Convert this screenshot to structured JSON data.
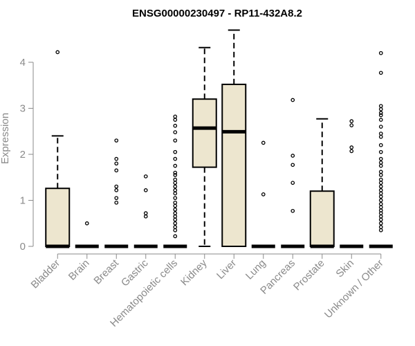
{
  "chart_data": {
    "type": "box",
    "title": "ENSG00000230497 - RP11-432A8.2",
    "xlabel": "",
    "ylabel": "Expression",
    "ylim": [
      0,
      4.7
    ],
    "yticks": [
      0,
      1,
      2,
      3,
      4
    ],
    "ytick_labels": [
      "0",
      "1",
      "2",
      "3",
      "4"
    ],
    "grid": false,
    "box_fill": "#ede6cf",
    "categories": [
      "Bladder",
      "Brain",
      "Breast",
      "Gastric",
      "Hematopoietic cells",
      "Kidney",
      "Liver",
      "Lung",
      "Pancreas",
      "Prostate",
      "Skin",
      "Unknown / Other"
    ],
    "boxes": [
      {
        "q1": 0,
        "median": 0,
        "q3": 1.26,
        "whisker_low": 0,
        "whisker_high": 2.4,
        "outliers": [
          4.22
        ]
      },
      {
        "q1": 0,
        "median": 0,
        "q3": 0,
        "whisker_low": 0,
        "whisker_high": 0,
        "outliers": [
          0.5
        ]
      },
      {
        "q1": 0,
        "median": 0,
        "q3": 0,
        "whisker_low": 0,
        "whisker_high": 0,
        "outliers": [
          2.3,
          1.9,
          1.8,
          1.65,
          1.3,
          1.22,
          1.05,
          0.95
        ]
      },
      {
        "q1": 0,
        "median": 0,
        "q3": 0,
        "whisker_low": 0,
        "whisker_high": 0,
        "outliers": [
          1.52,
          1.22,
          0.72,
          0.65
        ]
      },
      {
        "q1": 0,
        "median": 0,
        "q3": 0,
        "whisker_low": 0,
        "whisker_high": 0,
        "outliers": [
          2.82,
          2.75,
          2.62,
          2.48,
          2.3,
          2.05,
          1.9,
          1.75,
          1.6,
          1.55,
          1.45,
          1.38,
          1.3,
          1.22,
          1.15,
          1.05,
          0.95,
          0.88,
          0.8,
          0.72,
          0.65,
          0.58,
          0.5,
          0.42,
          0.35,
          0.22
        ]
      },
      {
        "q1": 1.72,
        "median": 2.57,
        "q3": 3.2,
        "whisker_low": 0,
        "whisker_high": 4.32,
        "outliers": []
      },
      {
        "q1": 0,
        "median": 2.49,
        "q3": 3.52,
        "whisker_low": 0,
        "whisker_high": 4.7,
        "outliers": []
      },
      {
        "q1": 0,
        "median": 0,
        "q3": 0,
        "whisker_low": 0,
        "whisker_high": 0,
        "outliers": [
          2.25,
          1.13
        ]
      },
      {
        "q1": 0,
        "median": 0,
        "q3": 0,
        "whisker_low": 0,
        "whisker_high": 0,
        "outliers": [
          3.18,
          1.97,
          1.77,
          1.38,
          0.77
        ]
      },
      {
        "q1": 0,
        "median": 0,
        "q3": 1.2,
        "whisker_low": 0,
        "whisker_high": 2.77,
        "outliers": []
      },
      {
        "q1": 0,
        "median": 0,
        "q3": 0,
        "whisker_low": 0,
        "whisker_high": 0,
        "outliers": [
          2.72,
          2.63,
          2.15,
          2.07
        ]
      },
      {
        "q1": 0,
        "median": 0,
        "q3": 0,
        "whisker_low": 0,
        "whisker_high": 0,
        "outliers": [
          4.2,
          3.77,
          3.05,
          2.98,
          2.9,
          2.85,
          2.75,
          2.6,
          2.45,
          2.38,
          2.2,
          2.05,
          1.9,
          1.82,
          1.75,
          1.62,
          1.55,
          1.45,
          1.38,
          1.3,
          1.22,
          1.15,
          1.08,
          1.0,
          0.92,
          0.85,
          0.78,
          0.72,
          0.65,
          0.58,
          0.5,
          0.42,
          0.35
        ]
      }
    ]
  }
}
